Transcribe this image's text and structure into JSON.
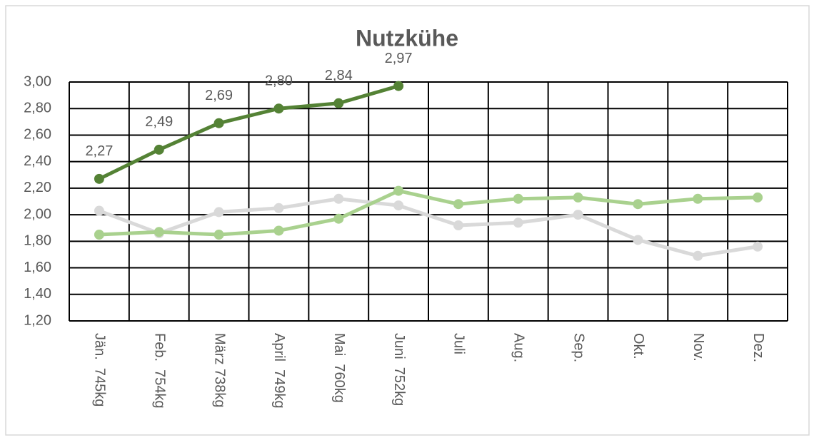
{
  "chart_data": {
    "type": "line",
    "title": "Nutzkühe",
    "categories": [
      "Jän.  745kg",
      "Feb.  754kg",
      "März 738kg",
      "April  749kg",
      "Mai  760kg",
      "Juni  752kg",
      "Juli",
      "Aug.",
      "Sep.",
      "Okt.",
      "Nov.",
      "Dez."
    ],
    "series": [
      {
        "color": "#d9d9d9",
        "values": [
          2.03,
          1.86,
          2.02,
          2.05,
          2.12,
          2.07,
          1.92,
          1.94,
          2.0,
          1.81,
          1.69,
          1.76
        ]
      },
      {
        "color": "#a9d18e",
        "values": [
          1.85,
          1.87,
          1.85,
          1.88,
          1.97,
          2.18,
          2.08,
          2.12,
          2.13,
          2.08,
          2.12,
          2.13
        ]
      },
      {
        "color": "#548235",
        "values": [
          2.27,
          2.49,
          2.69,
          2.8,
          2.84,
          2.97,
          null,
          null,
          null,
          null,
          null,
          null
        ],
        "value_labels": [
          "2,27",
          "2,49",
          "2,69",
          "2,80",
          "2,84",
          "2,97",
          null,
          null,
          null,
          null,
          null,
          null
        ]
      }
    ],
    "ylim": [
      1.2,
      3.0
    ],
    "yticks": [
      {
        "value": 1.2,
        "label": "1,20"
      },
      {
        "value": 1.4,
        "label": "1,40"
      },
      {
        "value": 1.6,
        "label": "1,60"
      },
      {
        "value": 1.8,
        "label": "1,80"
      },
      {
        "value": 2.0,
        "label": "2,00"
      },
      {
        "value": 2.2,
        "label": "2,20"
      },
      {
        "value": 2.4,
        "label": "2,40"
      },
      {
        "value": 2.6,
        "label": "2,60"
      },
      {
        "value": 2.8,
        "label": "2,80"
      },
      {
        "value": 3.0,
        "label": "3,00"
      }
    ],
    "grid": true
  }
}
